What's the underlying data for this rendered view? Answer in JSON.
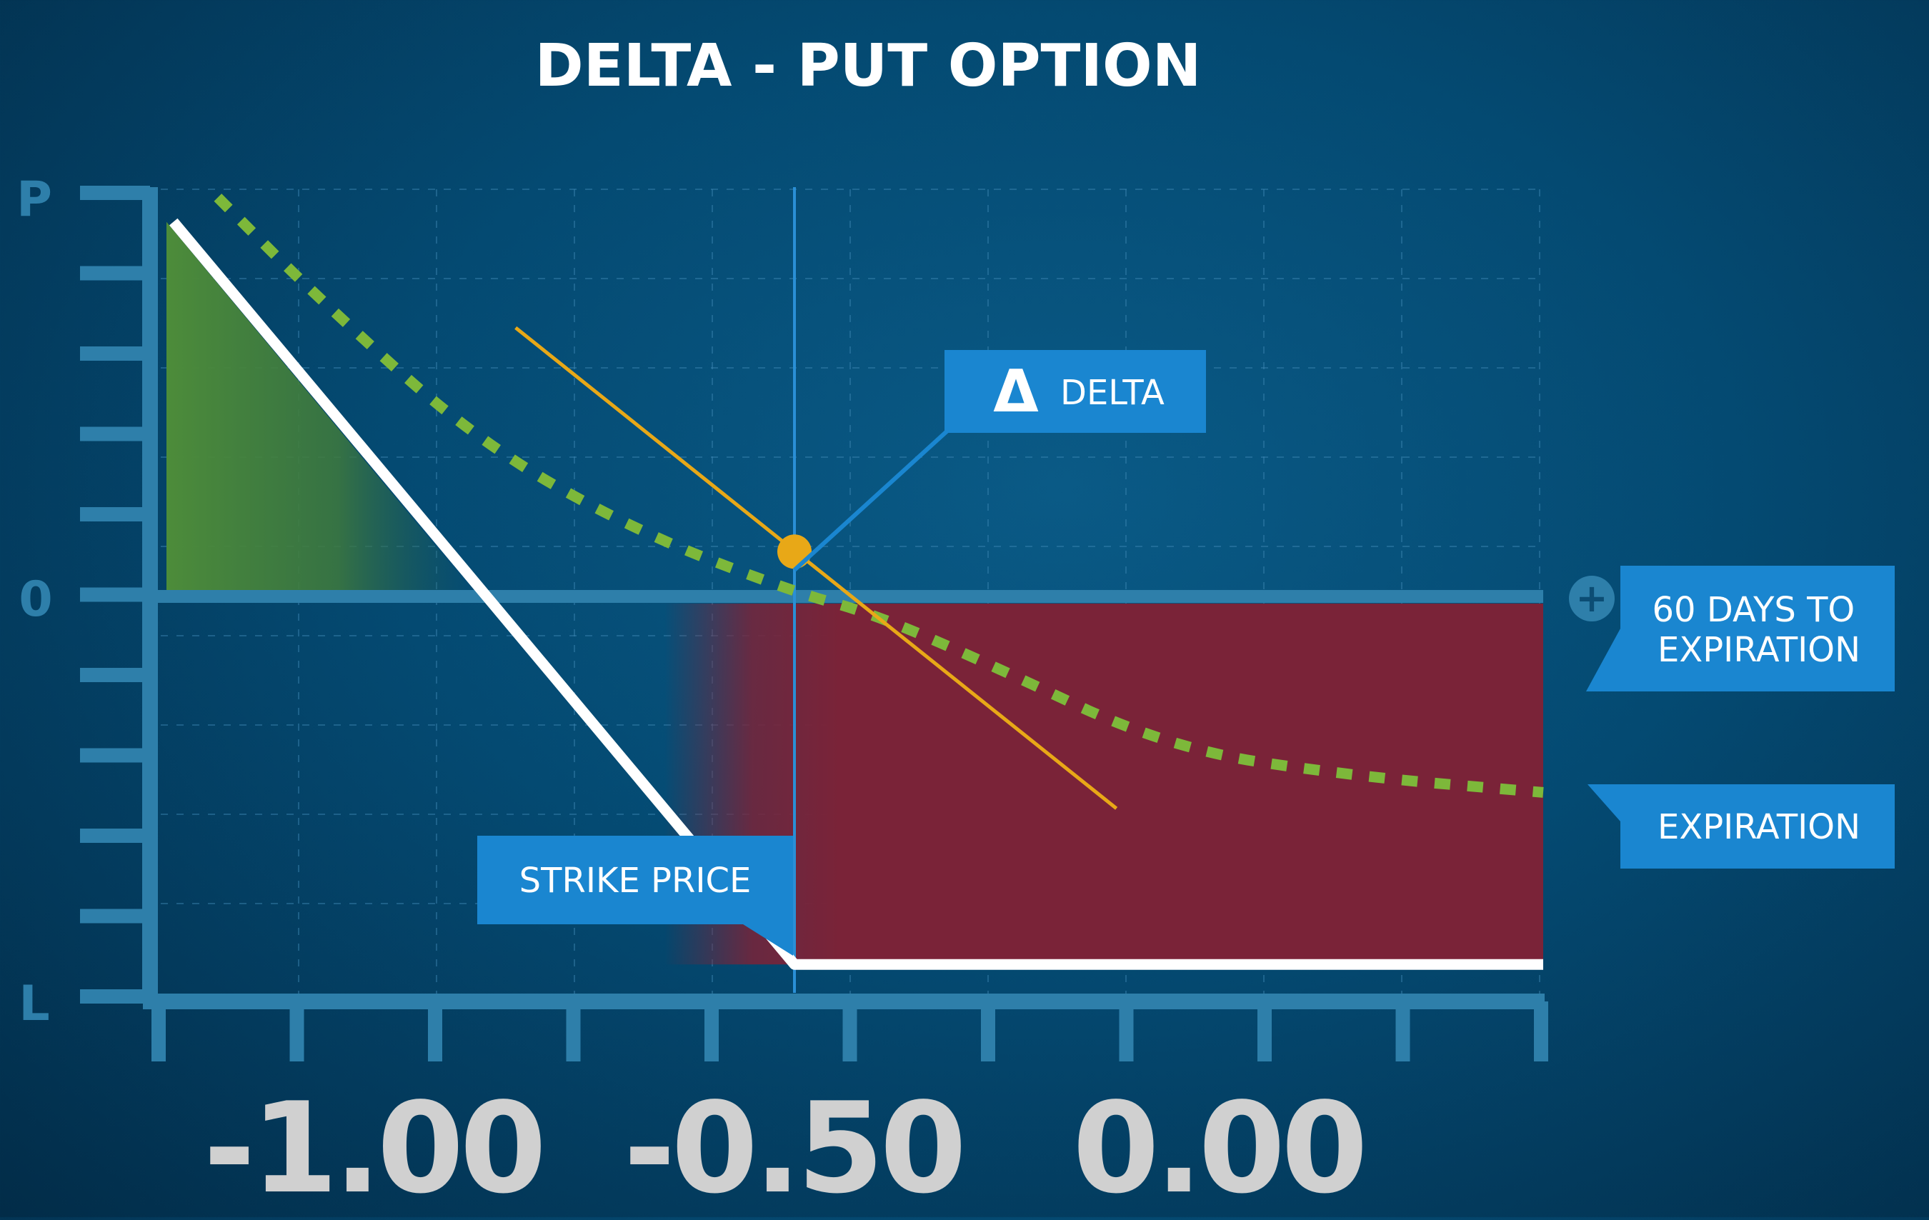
{
  "chart_data": {
    "type": "line",
    "title": "DELTA - PUT OPTION",
    "y_axis": {
      "top_label": "P",
      "zero_label": "0",
      "bottom_label": "L"
    },
    "x_tick_labels": [
      "-1.00",
      "-0.50",
      "0.00"
    ],
    "zero_line_marker": "+",
    "strike_price": 0,
    "ylim": [
      -1,
      1
    ],
    "xlim": [
      -1,
      1
    ],
    "series": [
      {
        "name": "60 DAYS TO EXPIRATION",
        "style": "dashed",
        "color": "#7db83a",
        "points": [
          [
            -0.91,
            0.98
          ],
          [
            -0.75,
            0.73
          ],
          [
            -0.5,
            0.38
          ],
          [
            -0.25,
            0.16
          ],
          [
            0,
            0.01
          ],
          [
            0.1,
            -0.04
          ],
          [
            0.25,
            -0.16
          ],
          [
            0.5,
            -0.38
          ],
          [
            0.75,
            -0.45
          ],
          [
            1.0,
            -0.49
          ]
        ]
      },
      {
        "name": "EXPIRATION",
        "style": "solid",
        "color": "#ffffff",
        "points": [
          [
            -0.98,
            0.92
          ],
          [
            0.0,
            -0.92
          ],
          [
            1.0,
            -0.92
          ]
        ]
      }
    ],
    "tangent": {
      "color": "#e8a817",
      "point": [
        0,
        0.11
      ],
      "from": [
        -0.44,
        0.66
      ],
      "to": [
        0.43,
        -0.53
      ]
    },
    "annotations": {
      "delta_label": "DELTA",
      "delta_symbol": "Δ",
      "strike_label": "STRIKE PRICE"
    },
    "colors": {
      "profit_fill": "#4d8c3a",
      "loss_fill": "#7a2338",
      "axis": "#2e7faa",
      "callout": "#1a86d0",
      "tick_label": "#d0d0d0"
    }
  }
}
